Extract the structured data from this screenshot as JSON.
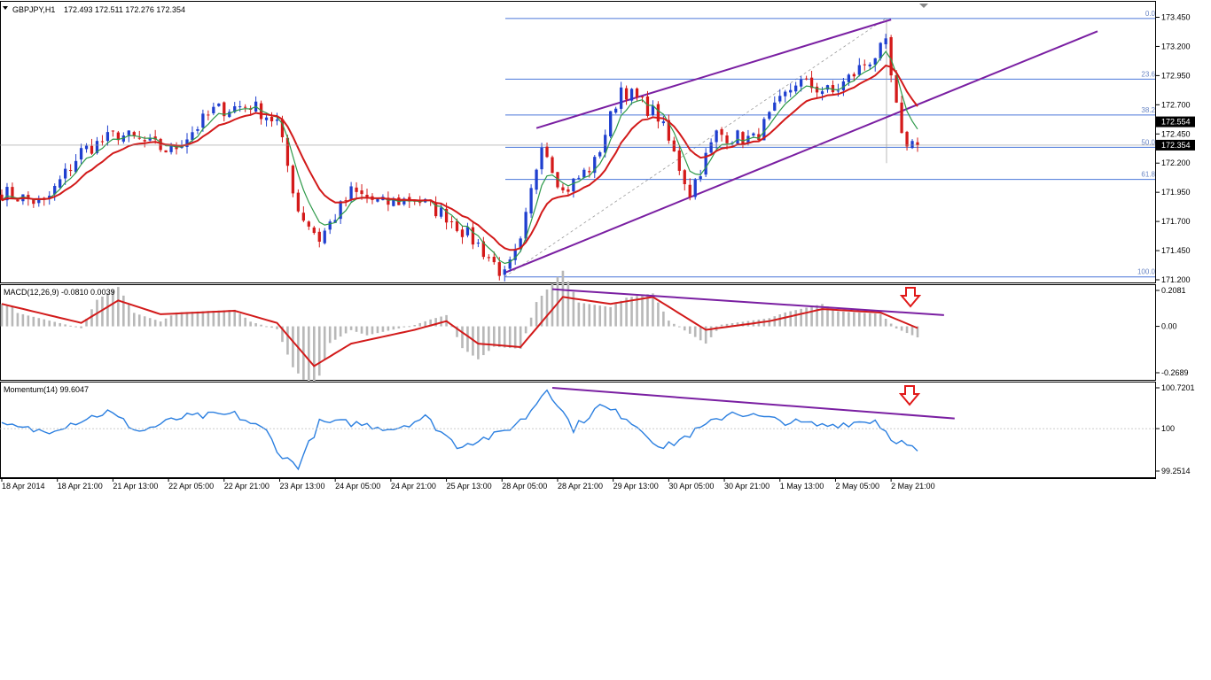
{
  "window": {
    "symbol_title": "GBPJPY,H1",
    "ohlc": "172.493 172.511 172.276 172.354"
  },
  "colors": {
    "bull_candle": "#1f3fcf",
    "bear_candle": "#d41a1a",
    "ma_fast": "#2e9a4a",
    "ma_slow": "#d21a1a",
    "channel": "#7a1fa2",
    "fib": "#4a77d9",
    "macd_hist": "#b8b8b8",
    "macd_signal": "#d21a1a",
    "momentum": "#2b7fe0",
    "arrow": "#e01818",
    "bid_label_bg": "#000000",
    "grid": "#bbbbbb"
  },
  "chart_data": [
    {
      "panel": "price",
      "type": "candlestick",
      "title": "GBPJPY,H1 172.493 172.511 172.276 172.354",
      "y_ticks": [
        "173.450",
        "173.200",
        "172.950",
        "172.700",
        "172.450",
        "172.200",
        "171.950",
        "171.700",
        "171.450",
        "171.200"
      ],
      "ylim": [
        171.175,
        173.55
      ],
      "current_price_labels": [
        "172.554",
        "172.354"
      ],
      "fib_levels": [
        {
          "label": "0.0",
          "price": 173.44
        },
        {
          "label": "23.6",
          "price": 172.92
        },
        {
          "label": "38.2",
          "price": 172.612
        },
        {
          "label": "50.0",
          "price": 172.335
        },
        {
          "label": "61.8",
          "price": 172.06
        },
        {
          "label": "100.0",
          "price": 171.225
        }
      ],
      "channel_upper": [
        {
          "bar": 101,
          "price": 172.5
        },
        {
          "bar": 168,
          "price": 173.43
        }
      ],
      "channel_lower": [
        {
          "bar": 95,
          "price": 171.26
        },
        {
          "bar": 207,
          "price": 173.33
        }
      ],
      "fib_anchor": [
        {
          "bar": 95,
          "price": 171.225
        },
        {
          "bar": 167,
          "price": 173.44
        }
      ],
      "key_prices": [
        {
          "bar": 0,
          "price": 171.95
        },
        {
          "bar": 8,
          "price": 171.85
        },
        {
          "bar": 15,
          "price": 172.3
        },
        {
          "bar": 22,
          "price": 172.45
        },
        {
          "bar": 32,
          "price": 172.3
        },
        {
          "bar": 40,
          "price": 172.65
        },
        {
          "bar": 47,
          "price": 172.7
        },
        {
          "bar": 52,
          "price": 172.55
        },
        {
          "bar": 56,
          "price": 171.8
        },
        {
          "bar": 60,
          "price": 171.55
        },
        {
          "bar": 66,
          "price": 171.95
        },
        {
          "bar": 72,
          "price": 171.85
        },
        {
          "bar": 78,
          "price": 171.9
        },
        {
          "bar": 84,
          "price": 171.75
        },
        {
          "bar": 90,
          "price": 171.5
        },
        {
          "bar": 95,
          "price": 171.23
        },
        {
          "bar": 98,
          "price": 171.5
        },
        {
          "bar": 102,
          "price": 172.4
        },
        {
          "bar": 106,
          "price": 171.95
        },
        {
          "bar": 112,
          "price": 172.2
        },
        {
          "bar": 117,
          "price": 172.85
        },
        {
          "bar": 124,
          "price": 172.6
        },
        {
          "bar": 130,
          "price": 171.95
        },
        {
          "bar": 135,
          "price": 172.45
        },
        {
          "bar": 142,
          "price": 172.4
        },
        {
          "bar": 150,
          "price": 172.9
        },
        {
          "bar": 157,
          "price": 172.8
        },
        {
          "bar": 163,
          "price": 173.05
        },
        {
          "bar": 167,
          "price": 173.2
        },
        {
          "bar": 170,
          "price": 172.4
        },
        {
          "bar": 173,
          "price": 172.354
        }
      ]
    },
    {
      "panel": "macd",
      "type": "histogram+line",
      "title": "MACD(12,26,9) -0.0810 0.0039",
      "y_ticks": [
        "0.2081",
        "0.00",
        "-0.2689"
      ],
      "ylim": [
        -0.2689,
        0.2081
      ],
      "signal_key_values": [
        {
          "bar": 0,
          "value": 0.13
        },
        {
          "bar": 15,
          "value": 0.02
        },
        {
          "bar": 22,
          "value": 0.15
        },
        {
          "bar": 30,
          "value": 0.07
        },
        {
          "bar": 44,
          "value": 0.09
        },
        {
          "bar": 52,
          "value": 0.02
        },
        {
          "bar": 59,
          "value": -0.23
        },
        {
          "bar": 66,
          "value": -0.1
        },
        {
          "bar": 78,
          "value": -0.02
        },
        {
          "bar": 84,
          "value": 0.03
        },
        {
          "bar": 90,
          "value": -0.1
        },
        {
          "bar": 98,
          "value": -0.12
        },
        {
          "bar": 106,
          "value": 0.17
        },
        {
          "bar": 115,
          "value": 0.13
        },
        {
          "bar": 123,
          "value": 0.17
        },
        {
          "bar": 133,
          "value": -0.02
        },
        {
          "bar": 145,
          "value": 0.03
        },
        {
          "bar": 155,
          "value": 0.1
        },
        {
          "bar": 166,
          "value": 0.08
        },
        {
          "bar": 173,
          "value": -0.01
        }
      ],
      "trendline": [
        {
          "bar": 104,
          "value": 0.215
        },
        {
          "bar": 178,
          "value": 0.065
        }
      ]
    },
    {
      "panel": "momentum",
      "type": "line",
      "title": "Momentum(14) 99.6047",
      "y_ticks": [
        "100.7201",
        "100",
        "99.2514"
      ],
      "ylim": [
        99.2514,
        100.7201
      ],
      "key_values": [
        {
          "bar": 0,
          "value": 100.05
        },
        {
          "bar": 8,
          "value": 99.95
        },
        {
          "bar": 15,
          "value": 100.15
        },
        {
          "bar": 20,
          "value": 100.3
        },
        {
          "bar": 26,
          "value": 99.95
        },
        {
          "bar": 34,
          "value": 100.2
        },
        {
          "bar": 44,
          "value": 100.25
        },
        {
          "bar": 50,
          "value": 99.95
        },
        {
          "bar": 53,
          "value": 99.5
        },
        {
          "bar": 56,
          "value": 99.35
        },
        {
          "bar": 60,
          "value": 100.1
        },
        {
          "bar": 66,
          "value": 100.1
        },
        {
          "bar": 74,
          "value": 100.0
        },
        {
          "bar": 80,
          "value": 100.2
        },
        {
          "bar": 86,
          "value": 99.7
        },
        {
          "bar": 94,
          "value": 99.9
        },
        {
          "bar": 99,
          "value": 100.2
        },
        {
          "bar": 103,
          "value": 100.72
        },
        {
          "bar": 108,
          "value": 100.0
        },
        {
          "bar": 113,
          "value": 100.4
        },
        {
          "bar": 118,
          "value": 100.2
        },
        {
          "bar": 125,
          "value": 99.65
        },
        {
          "bar": 132,
          "value": 100.0
        },
        {
          "bar": 138,
          "value": 100.3
        },
        {
          "bar": 146,
          "value": 100.15
        },
        {
          "bar": 155,
          "value": 100.05
        },
        {
          "bar": 165,
          "value": 100.15
        },
        {
          "bar": 168,
          "value": 99.85
        },
        {
          "bar": 173,
          "value": 99.6047
        }
      ],
      "trendline": [
        {
          "bar": 104,
          "value": 100.72
        },
        {
          "bar": 180,
          "value": 100.18
        }
      ]
    }
  ],
  "x_axis": {
    "labels": [
      {
        "bar": 0,
        "text": "18 Apr 2014"
      },
      {
        "bar": 10.5,
        "text": "18 Apr 21:00"
      },
      {
        "bar": 21,
        "text": "21 Apr 13:00"
      },
      {
        "bar": 31.5,
        "text": "22 Apr 05:00"
      },
      {
        "bar": 42,
        "text": "22 Apr 21:00"
      },
      {
        "bar": 52.5,
        "text": "23 Apr 13:00"
      },
      {
        "bar": 63,
        "text": "24 Apr 05:00"
      },
      {
        "bar": 73.5,
        "text": "24 Apr 21:00"
      },
      {
        "bar": 84,
        "text": "25 Apr 13:00"
      },
      {
        "bar": 94.5,
        "text": "28 Apr 05:00"
      },
      {
        "bar": 105,
        "text": "28 Apr 21:00"
      },
      {
        "bar": 115.5,
        "text": "29 Apr 13:00"
      },
      {
        "bar": 126,
        "text": "30 Apr 05:00"
      },
      {
        "bar": 136.5,
        "text": "30 Apr 21:00"
      },
      {
        "bar": 147,
        "text": "1 May 13:00"
      },
      {
        "bar": 157.5,
        "text": "2 May 05:00"
      },
      {
        "bar": 168,
        "text": "2 May 21:00"
      }
    ]
  }
}
